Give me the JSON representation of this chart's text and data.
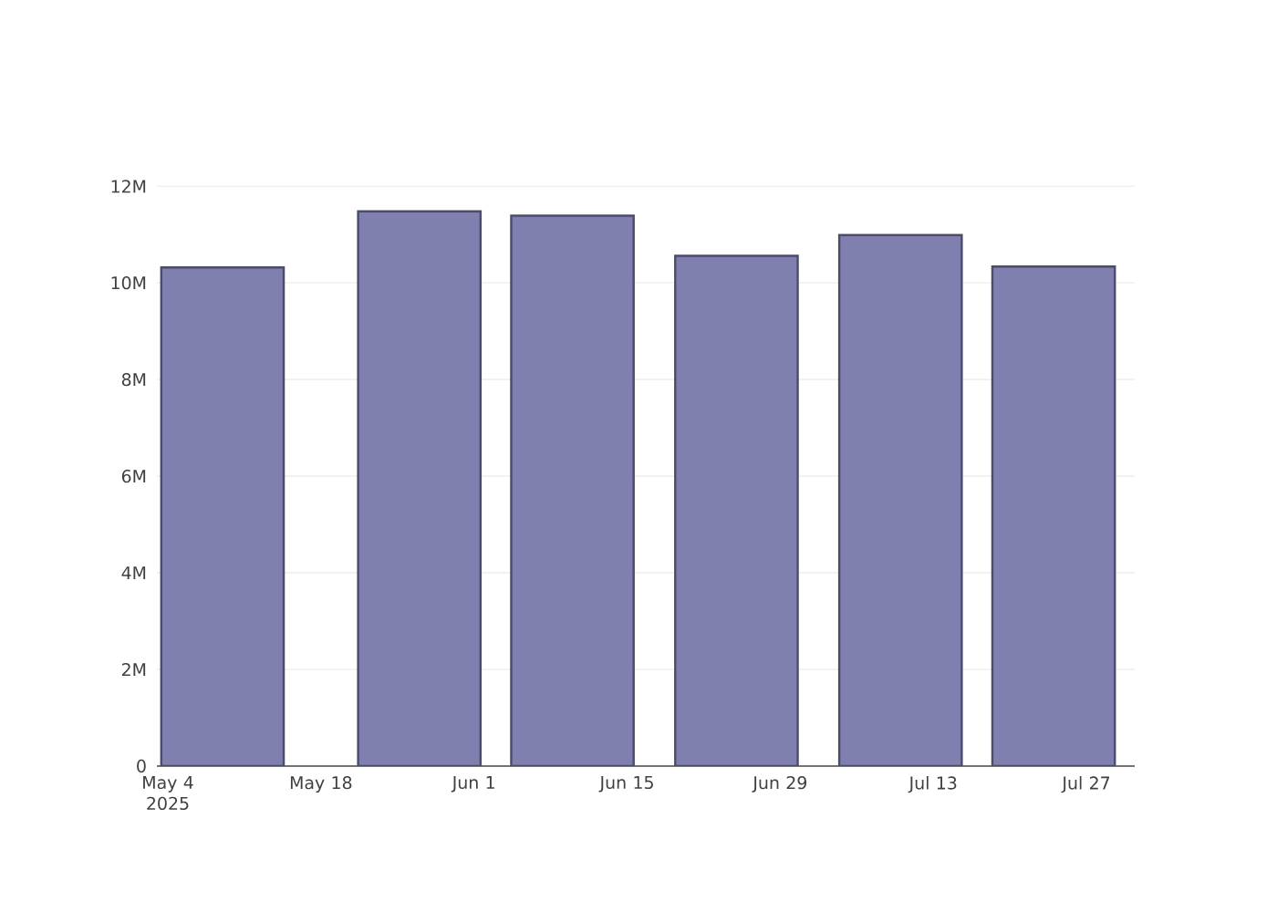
{
  "chart_data": {
    "type": "bar",
    "x": [
      "2025-05-09",
      "2025-05-27",
      "2025-06-10",
      "2025-06-25",
      "2025-07-10",
      "2025-07-24"
    ],
    "values": [
      10320000,
      11480000,
      11390000,
      10560000,
      10990000,
      10340000
    ],
    "color": "#7f7fb0",
    "xlim": [
      "2025-05-03",
      "2025-07-31T10:00"
    ],
    "xticks": [
      {
        "value": "2025-05-04",
        "label": "May 4 2025"
      },
      {
        "value": "2025-05-18",
        "label": "May 18"
      },
      {
        "value": "2025-06-01",
        "label": "Jun 1"
      },
      {
        "value": "2025-06-15",
        "label": "Jun 15"
      },
      {
        "value": "2025-06-29",
        "label": "Jun 29"
      },
      {
        "value": "2025-07-13",
        "label": "Jul 13"
      },
      {
        "value": "2025-07-27",
        "label": "Jul 27"
      }
    ],
    "ylim": [
      0,
      12080000
    ],
    "yticks": [
      {
        "value": 0,
        "label": "0"
      },
      {
        "value": 2000000,
        "label": "2M"
      },
      {
        "value": 4000000,
        "label": "4M"
      },
      {
        "value": 6000000,
        "label": "6M"
      },
      {
        "value": 8000000,
        "label": "8M"
      },
      {
        "value": 10000000,
        "label": "10M"
      },
      {
        "value": 12000000,
        "label": "12M"
      }
    ],
    "grid": "y"
  }
}
